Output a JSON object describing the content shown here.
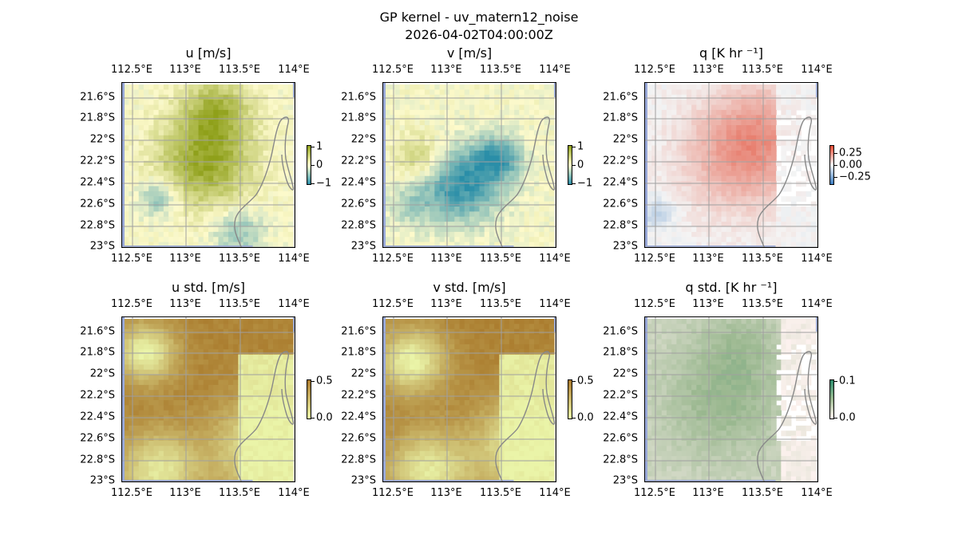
{
  "figure": {
    "title_line1": "GP kernel - uv_matern12_noise",
    "title_line2": "2026-04-02T04:00:00Z"
  },
  "axes": {
    "lon_ticks": [
      "112.5°E",
      "113°E",
      "113.5°E",
      "114°E"
    ],
    "lat_ticks": [
      "21.6°S",
      "21.8°S",
      "22°S",
      "22.2°S",
      "22.4°S",
      "22.6°S",
      "22.8°S",
      "23°S"
    ]
  },
  "panels": [
    {
      "id": "u",
      "title": "u [m/s]",
      "colorbar_ticks": [
        "1",
        "0",
        "−1"
      ],
      "colormap": "diverging-blue-yellow-green",
      "colors": [
        "#2a8ea8",
        "#fdfacb",
        "#8fa01a"
      ]
    },
    {
      "id": "v",
      "title": "v [m/s]",
      "colorbar_ticks": [
        "1",
        "0",
        "−1"
      ],
      "colormap": "diverging-blue-yellow-green",
      "colors": [
        "#2a8ea8",
        "#fdfacb",
        "#8fa01a"
      ]
    },
    {
      "id": "q",
      "title": "q [K hr ⁻¹]",
      "colorbar_ticks": [
        "0.25",
        "0.00",
        "−0.25"
      ],
      "colormap": "diverging-blue-white-red",
      "colors": [
        "#3a7cc0",
        "#f4f4f4",
        "#e24a33"
      ]
    },
    {
      "id": "u_std",
      "title": "u std. [m/s]",
      "colorbar_ticks": [
        "0.5",
        "0.0"
      ],
      "colormap": "sequential-yellow-brown",
      "colors": [
        "#eaf4a8",
        "#a8782a"
      ]
    },
    {
      "id": "v_std",
      "title": "v std. [m/s]",
      "colorbar_ticks": [
        "0.5",
        "0.0"
      ],
      "colormap": "sequential-yellow-brown",
      "colors": [
        "#eaf4a8",
        "#a8782a"
      ]
    },
    {
      "id": "q_std",
      "title": "q std. [K hr ⁻¹]",
      "colorbar_ticks": [
        "0.1",
        "0.0"
      ],
      "colormap": "sequential-pink-green",
      "colors": [
        "#fdf2ef",
        "#9bb890",
        "#2a8a6a"
      ]
    }
  ],
  "colors": {
    "land_mask": "#98a8d8",
    "coastline": "#888888",
    "gridline": "#a0a0a0"
  }
}
